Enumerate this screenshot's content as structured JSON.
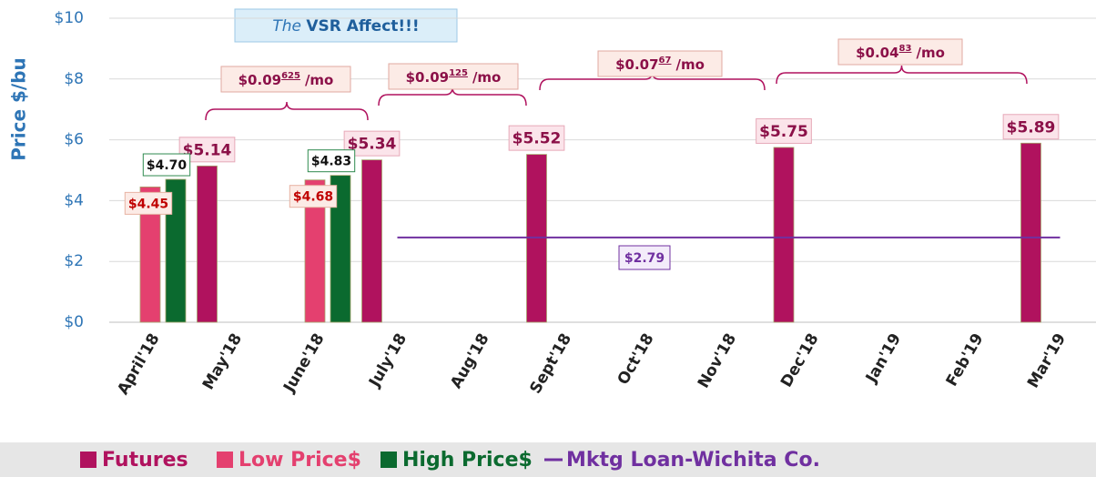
{
  "chart_data": {
    "type": "bar",
    "title": {
      "italic": "The",
      "bold": "VSR Affect!!!"
    },
    "y_label": "Price $/bu",
    "categories": [
      "April'18",
      "May'18",
      "June'18",
      "July'18",
      "Aug'18",
      "Sept'18",
      "Oct'18",
      "Nov'18",
      "Dec'18",
      "Jan'19",
      "Feb'19",
      "Mar'19"
    ],
    "ylim": [
      0,
      10
    ],
    "yticks": [
      {
        "value": 0,
        "label": "$0"
      },
      {
        "value": 2,
        "label": "$2"
      },
      {
        "value": 4,
        "label": "$4"
      },
      {
        "value": 6,
        "label": "$6"
      },
      {
        "value": 8,
        "label": "$8"
      },
      {
        "value": 10,
        "label": "$10"
      }
    ],
    "grid": true,
    "series": [
      {
        "name": "Futures",
        "type": "bar",
        "color": "#b0125e",
        "values": [
          null,
          5.14,
          null,
          5.34,
          null,
          5.52,
          null,
          null,
          5.75,
          null,
          null,
          5.89
        ],
        "value_labels": [
          null,
          "$5.14",
          null,
          "$5.34",
          null,
          "$5.52",
          null,
          null,
          "$5.75",
          null,
          null,
          "$5.89"
        ]
      },
      {
        "name": "Low Price$",
        "type": "bar",
        "color": "#e4406f",
        "values": [
          4.45,
          null,
          4.68,
          null,
          null,
          null,
          null,
          null,
          null,
          null,
          null,
          null
        ],
        "value_labels": [
          "$4.45",
          null,
          "$4.68",
          null,
          null,
          null,
          null,
          null,
          null,
          null,
          null,
          null
        ]
      },
      {
        "name": "High Price$",
        "type": "bar",
        "color": "#0b6a2f",
        "values": [
          4.7,
          null,
          4.83,
          null,
          null,
          null,
          null,
          null,
          null,
          null,
          null,
          null
        ],
        "value_labels": [
          "$4.70",
          null,
          "$4.83",
          null,
          null,
          null,
          null,
          null,
          null,
          null,
          null,
          null
        ]
      },
      {
        "name": "Mktg Loan-Wichita Co.",
        "type": "line",
        "color": "#7030a0",
        "values": [
          null,
          null,
          null,
          2.79,
          2.79,
          2.79,
          2.79,
          2.79,
          2.79,
          2.79,
          2.79,
          2.79
        ],
        "label": "$2.79"
      }
    ],
    "annotations": [
      {
        "main": "$0.09",
        "sup": "625",
        "unit": "/mo"
      },
      {
        "main": "$0.09",
        "sup": "125",
        "unit": "/mo"
      },
      {
        "main": "$0.07",
        "sup": "67",
        "unit": "/mo"
      },
      {
        "main": "$0.04",
        "sup": "83",
        "unit": "/mo"
      }
    ]
  }
}
